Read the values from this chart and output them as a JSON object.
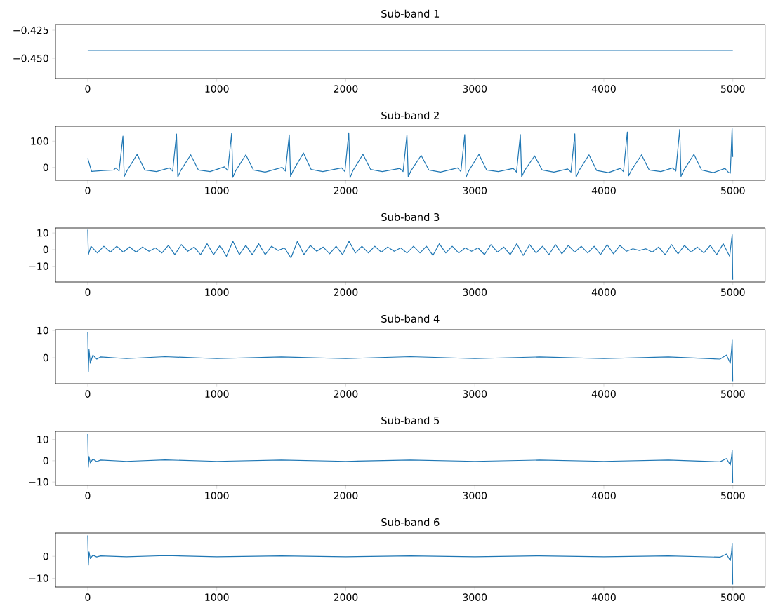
{
  "chart_data": [
    {
      "type": "line",
      "title": "Sub-band 1",
      "color": "#1f77b4",
      "xlim": [
        -250,
        5250
      ],
      "xticks": [
        0,
        1000,
        2000,
        3000,
        4000,
        5000
      ],
      "ylim": [
        -0.468,
        -0.42
      ],
      "yticks": [
        {
          "value": -0.45,
          "label": "−0.450"
        },
        {
          "value": -0.425,
          "label": "−0.425"
        }
      ],
      "x": [
        0,
        5000
      ],
      "values": [
        -0.443,
        -0.443
      ]
    },
    {
      "type": "line",
      "title": "Sub-band 2",
      "color": "#1f77b4",
      "xlim": [
        -250,
        5250
      ],
      "xticks": [
        0,
        1000,
        2000,
        3000,
        4000,
        5000
      ],
      "ylim": [
        -49,
        157
      ],
      "yticks": [
        0,
        100
      ],
      "x": [
        0,
        30,
        120,
        200,
        218,
        243,
        273,
        283,
        303,
        383,
        443,
        533,
        633,
        658,
        688,
        698,
        718,
        798,
        858,
        948,
        1060,
        1085,
        1115,
        1125,
        1145,
        1225,
        1285,
        1375,
        1507,
        1532,
        1562,
        1572,
        1592,
        1672,
        1732,
        1822,
        1968,
        1993,
        2023,
        2033,
        2053,
        2133,
        2193,
        2283,
        2419,
        2444,
        2474,
        2484,
        2504,
        2584,
        2644,
        2734,
        2867,
        2892,
        2922,
        2932,
        2952,
        3032,
        3092,
        3182,
        3298,
        3323,
        3353,
        3363,
        3383,
        3463,
        3523,
        3613,
        3720,
        3745,
        3775,
        3785,
        3805,
        3885,
        3945,
        4035,
        4127,
        4152,
        4182,
        4192,
        4212,
        4292,
        4352,
        4442,
        4533,
        4558,
        4588,
        4598,
        4618,
        4698,
        4758,
        4848,
        4939,
        4964,
        4980,
        4994,
        4999
      ],
      "values": [
        35,
        -15,
        -12,
        -10,
        -2,
        -14,
        119,
        -35,
        -14,
        50,
        -10,
        -16,
        -2,
        -14,
        127,
        -37,
        -14,
        48,
        -10,
        -16,
        2,
        -12,
        129,
        -38,
        -14,
        48,
        -10,
        -18,
        0,
        -14,
        124,
        -34,
        -12,
        55,
        -8,
        -16,
        -2,
        -16,
        132,
        -40,
        -14,
        50,
        -8,
        -16,
        -4,
        -16,
        124,
        -36,
        -14,
        46,
        -10,
        -18,
        -2,
        -16,
        125,
        -38,
        -14,
        50,
        -10,
        -16,
        -4,
        -18,
        125,
        -36,
        -14,
        44,
        -10,
        -18,
        -6,
        -18,
        128,
        -38,
        -14,
        48,
        -12,
        -20,
        -4,
        -16,
        135,
        -32,
        -12,
        48,
        -10,
        -16,
        -2,
        -14,
        145,
        -34,
        -12,
        50,
        -10,
        -20,
        -4,
        -18,
        -22,
        148,
        40
      ]
    },
    {
      "type": "line",
      "title": "Sub-band 3",
      "color": "#1f77b4",
      "xlim": [
        -250,
        5250
      ],
      "xticks": [
        0,
        1000,
        2000,
        3000,
        4000,
        5000
      ],
      "ylim": [
        -19.4,
        13
      ],
      "yticks": [
        {
          "value": -10,
          "label": "−10"
        },
        0,
        10
      ],
      "x": [
        0,
        5,
        25,
        75,
        125,
        175,
        225,
        275,
        325,
        375,
        425,
        475,
        525,
        575,
        625,
        675,
        725,
        775,
        825,
        875,
        925,
        975,
        1025,
        1075,
        1125,
        1175,
        1225,
        1275,
        1325,
        1375,
        1425,
        1475,
        1525,
        1575,
        1625,
        1675,
        1725,
        1775,
        1825,
        1875,
        1925,
        1975,
        2025,
        2075,
        2125,
        2175,
        2225,
        2275,
        2325,
        2375,
        2425,
        2475,
        2525,
        2575,
        2625,
        2675,
        2725,
        2775,
        2825,
        2875,
        2925,
        2975,
        3025,
        3075,
        3125,
        3175,
        3225,
        3275,
        3325,
        3375,
        3425,
        3475,
        3525,
        3575,
        3625,
        3675,
        3725,
        3775,
        3825,
        3875,
        3925,
        3975,
        4025,
        4075,
        4125,
        4175,
        4225,
        4275,
        4325,
        4375,
        4425,
        4475,
        4525,
        4575,
        4625,
        4675,
        4725,
        4775,
        4825,
        4875,
        4925,
        4975,
        4990,
        4995,
        4999
      ],
      "values": [
        12,
        -3,
        2,
        -2,
        2,
        -1.5,
        2,
        -1.5,
        1.5,
        -1.5,
        1.5,
        -1,
        1,
        -2,
        2.5,
        -3,
        3,
        -1,
        1.5,
        -3,
        3.5,
        -3,
        2.5,
        -4,
        5,
        -3,
        2.5,
        -3,
        3.5,
        -3,
        2,
        -0.5,
        1,
        -5,
        5,
        -3,
        2.5,
        -1,
        1.5,
        -2.5,
        2,
        -3,
        5,
        -2,
        2,
        -2,
        2,
        -1.5,
        1.5,
        -1,
        1,
        -2,
        2,
        -2,
        2,
        -3.5,
        3.5,
        -2,
        2,
        -2,
        1,
        -1,
        1,
        -3,
        3,
        -1.5,
        1.5,
        -3,
        3.5,
        -3.5,
        3,
        -2,
        2,
        -3,
        3,
        -2.5,
        2.5,
        -1.5,
        2,
        -2,
        2,
        -3,
        3,
        -2.5,
        2.5,
        -1,
        0.5,
        -0.5,
        0.5,
        -1.5,
        1.5,
        -3,
        3,
        -2.5,
        2.5,
        -1.5,
        1.5,
        -2,
        2.5,
        -3,
        3.5,
        -4,
        6,
        9,
        -18
      ]
    },
    {
      "type": "line",
      "title": "Sub-band 4",
      "color": "#1f77b4",
      "xlim": [
        -250,
        5250
      ],
      "xticks": [
        0,
        1000,
        2000,
        3000,
        4000,
        5000
      ],
      "ylim": [
        -9.5,
        10.3
      ],
      "yticks": [
        0,
        10
      ],
      "x": [
        0,
        5,
        10,
        20,
        40,
        70,
        100,
        300,
        600,
        1000,
        1500,
        2000,
        2500,
        3000,
        3500,
        4000,
        4500,
        4900,
        4950,
        4980,
        4990,
        4995,
        4999
      ],
      "values": [
        9.5,
        -5,
        3,
        -2,
        1,
        -0.5,
        0.3,
        -0.3,
        0.4,
        -0.3,
        0.3,
        -0.3,
        0.4,
        -0.3,
        0.3,
        -0.3,
        0.3,
        -0.5,
        1,
        -2,
        3,
        6.5,
        -8.6
      ]
    },
    {
      "type": "line",
      "title": "Sub-band 5",
      "color": "#1f77b4",
      "xlim": [
        -250,
        5250
      ],
      "xticks": [
        0,
        1000,
        2000,
        3000,
        4000,
        5000
      ],
      "ylim": [
        -11.6,
        13.8
      ],
      "yticks": [
        {
          "value": -10,
          "label": "−10"
        },
        0,
        10
      ],
      "x": [
        0,
        5,
        10,
        20,
        40,
        70,
        100,
        300,
        600,
        1000,
        1500,
        2000,
        2500,
        3000,
        3500,
        4000,
        4500,
        4900,
        4950,
        4980,
        4990,
        4995,
        4999
      ],
      "values": [
        12.5,
        -3,
        2,
        -1,
        0.8,
        -0.4,
        0.3,
        -0.3,
        0.4,
        -0.3,
        0.3,
        -0.3,
        0.3,
        -0.3,
        0.3,
        -0.3,
        0.3,
        -0.5,
        1,
        -2,
        2,
        5,
        -10.5
      ]
    },
    {
      "type": "line",
      "title": "Sub-band 6",
      "color": "#1f77b4",
      "xlim": [
        -250,
        5250
      ],
      "xticks": [
        0,
        1000,
        2000,
        3000,
        4000,
        5000
      ],
      "ylim": [
        -14,
        10.6
      ],
      "yticks": [
        {
          "value": -10,
          "label": "−10"
        },
        0
      ],
      "x": [
        0,
        5,
        10,
        20,
        40,
        70,
        100,
        300,
        600,
        1000,
        1500,
        2000,
        2500,
        3000,
        3500,
        4000,
        4500,
        4900,
        4950,
        4980,
        4990,
        4995,
        4999
      ],
      "values": [
        9.5,
        -4,
        2,
        -1,
        0.5,
        -0.3,
        0.2,
        -0.2,
        0.3,
        -0.2,
        0.2,
        -0.2,
        0.2,
        -0.2,
        0.2,
        -0.2,
        0.2,
        -0.4,
        1,
        -2,
        2,
        6,
        -12.9
      ]
    }
  ]
}
